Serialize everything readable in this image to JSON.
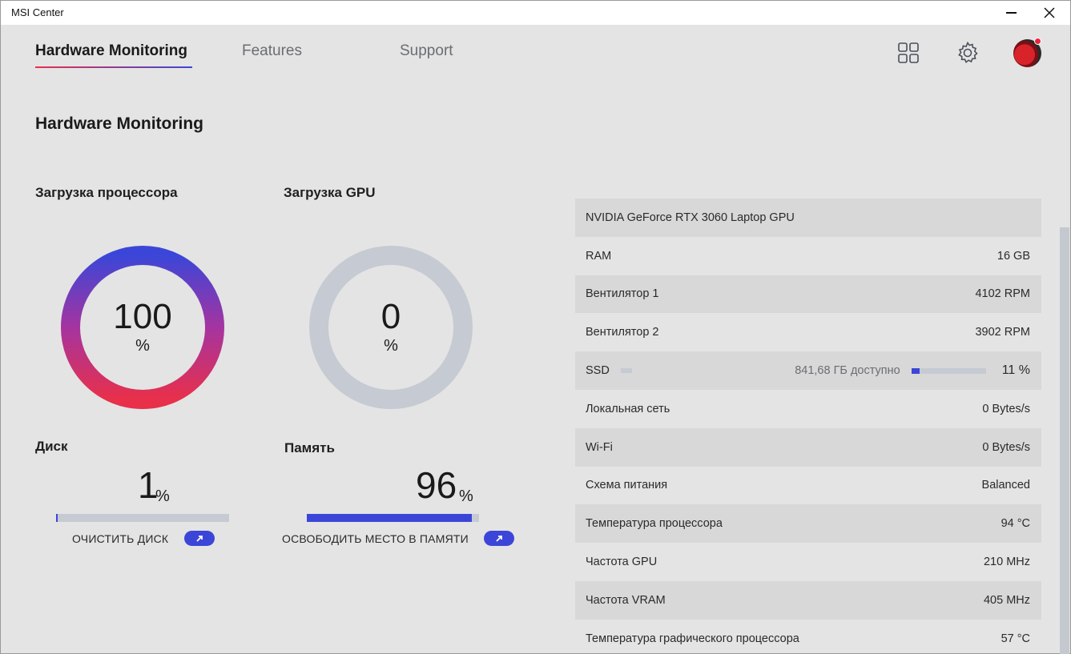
{
  "window": {
    "title": "MSI Center"
  },
  "nav": {
    "tabs": [
      {
        "label": "Hardware Monitoring",
        "active": true
      },
      {
        "label": "Features",
        "active": false
      },
      {
        "label": "Support",
        "active": false
      }
    ]
  },
  "header_icons": [
    "grid-icon",
    "gear-icon",
    "avatar"
  ],
  "page": {
    "title": "Hardware Monitoring"
  },
  "cpu": {
    "label": "Загрузка процессора",
    "value": "100",
    "unit": "%",
    "percent": 100
  },
  "gpu": {
    "label": "Загрузка GPU",
    "value": "0",
    "unit": "%",
    "percent": 0
  },
  "disk": {
    "label": "Диск",
    "value": "1",
    "unit": "%",
    "percent": 1,
    "action": "ОЧИСТИТЬ ДИСК"
  },
  "memory": {
    "label": "Память",
    "value": "96",
    "unit": "%",
    "percent": 96,
    "action": "ОСВОБОДИТЬ МЕСТО В ПАМЯТИ"
  },
  "info": {
    "gpu_name": "NVIDIA GeForce RTX 3060 Laptop GPU",
    "rows": [
      {
        "label": "RAM",
        "value": "16 GB"
      },
      {
        "label": "Вентилятор 1",
        "value": "4102 RPM"
      },
      {
        "label": "Вентилятор 2",
        "value": "3902 RPM"
      }
    ],
    "ssd": {
      "label": "SSD",
      "available": "841,68 ГБ доступно",
      "value": "11 %",
      "percent": 11
    },
    "rows2": [
      {
        "label": "Локальная сеть",
        "value": "0 Bytes/s"
      },
      {
        "label": "Wi-Fi",
        "value": "0 Bytes/s"
      },
      {
        "label": "Схема питания",
        "value": "Balanced"
      },
      {
        "label": "Температура процессора",
        "value": "94 °C"
      },
      {
        "label": "Частота GPU",
        "value": "210 MHz"
      },
      {
        "label": "Частота VRAM",
        "value": "405 MHz"
      },
      {
        "label": "Температура графического процессора",
        "value": "57 °C"
      }
    ]
  },
  "colors": {
    "accent": "#3b46d8",
    "gradient_start": "#e8304a",
    "gradient_end": "#3b46d8",
    "track": "#c6cad2"
  }
}
